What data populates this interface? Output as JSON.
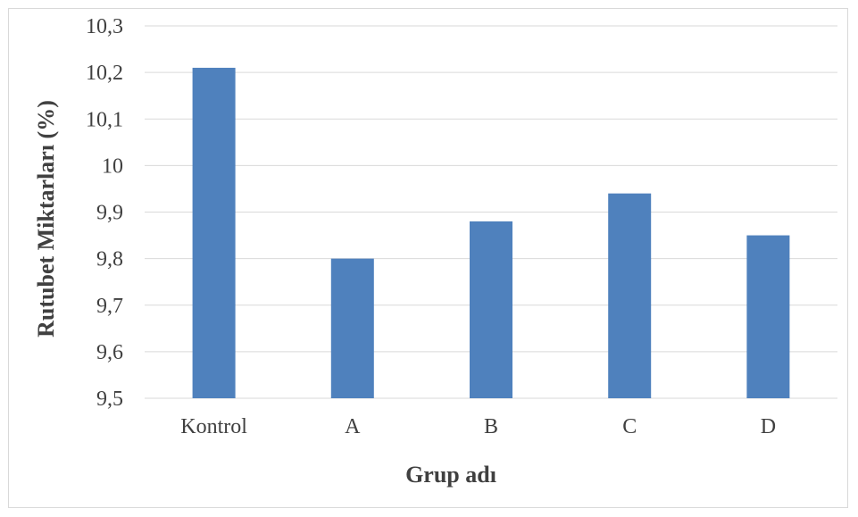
{
  "chart_data": {
    "type": "bar",
    "categories": [
      "Kontrol",
      "A",
      "B",
      "C",
      "D"
    ],
    "values": [
      10.21,
      9.8,
      9.88,
      9.94,
      9.85
    ],
    "xlabel": "Grup adı",
    "ylabel": "Rutubet Miktarları (%)",
    "ylim": [
      9.5,
      10.3
    ],
    "yticks": [
      "9,5",
      "9,6",
      "9,7",
      "9,8",
      "9,9",
      "10",
      "10,1",
      "10,2",
      "10,3"
    ],
    "grid": true,
    "legend": "none",
    "colors": {
      "bar": "#4f81bd",
      "grid": "#d9d9d9",
      "text": "#404040"
    }
  }
}
